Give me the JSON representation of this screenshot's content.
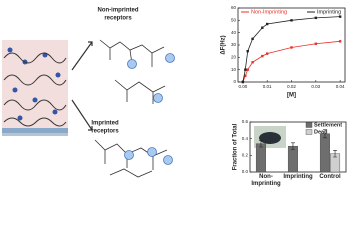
{
  "labels": {
    "top_receptors": [
      "Non-imprinted",
      "receptors"
    ],
    "bottom_receptors": [
      "Imprinted",
      "receptors"
    ]
  },
  "chart_data": [
    {
      "type": "line",
      "xlabel": "[M]",
      "ylabel": "ΔF(Hz)",
      "x": [
        0,
        0.001,
        0.002,
        0.004,
        0.008,
        0.01,
        0.02,
        0.03,
        0.04
      ],
      "series": [
        {
          "name": "Non-Imprinting",
          "color": "#e8302a",
          "values": [
            0,
            5,
            10,
            16,
            21,
            23,
            28,
            31,
            33
          ]
        },
        {
          "name": "Imprinting",
          "color": "#222222",
          "values": [
            0,
            10,
            25,
            35,
            44,
            47,
            50,
            52,
            53
          ]
        }
      ],
      "xlim": [
        -0.002,
        0.042
      ],
      "xticks": [
        {
          "value": 0,
          "label": "0.00"
        },
        {
          "value": 0.01,
          "label": "0.01"
        },
        {
          "value": 0.02,
          "label": "0.02"
        },
        {
          "value": 0.03,
          "label": "0.03"
        },
        {
          "value": 0.04,
          "label": "0.04"
        }
      ],
      "ylim": [
        0,
        60
      ],
      "yticks": [
        0,
        10,
        20,
        30,
        40,
        50,
        60
      ]
    },
    {
      "type": "bar",
      "ylabel": "Fraction of Total",
      "categories": [
        "Non-\nImprinting",
        "Imprinting",
        "Control"
      ],
      "series": [
        {
          "name": "Settlement",
          "color": "#6e6e6e",
          "values": [
            0.34,
            0.31,
            0.46
          ],
          "errors": [
            0.04,
            0.04,
            0.05
          ]
        },
        {
          "name": "Dead",
          "color": "#cfcfcf",
          "values": [
            null,
            null,
            0.22
          ],
          "errors": [
            null,
            null,
            0.04
          ]
        }
      ],
      "ylim": [
        0,
        0.6
      ],
      "yticks": [
        {
          "value": 0,
          "label": "0.0"
        },
        {
          "value": 0.2,
          "label": "0.2"
        },
        {
          "value": 0.4,
          "label": "0.4"
        },
        {
          "value": 0.6,
          "label": "0.6"
        }
      ]
    }
  ]
}
